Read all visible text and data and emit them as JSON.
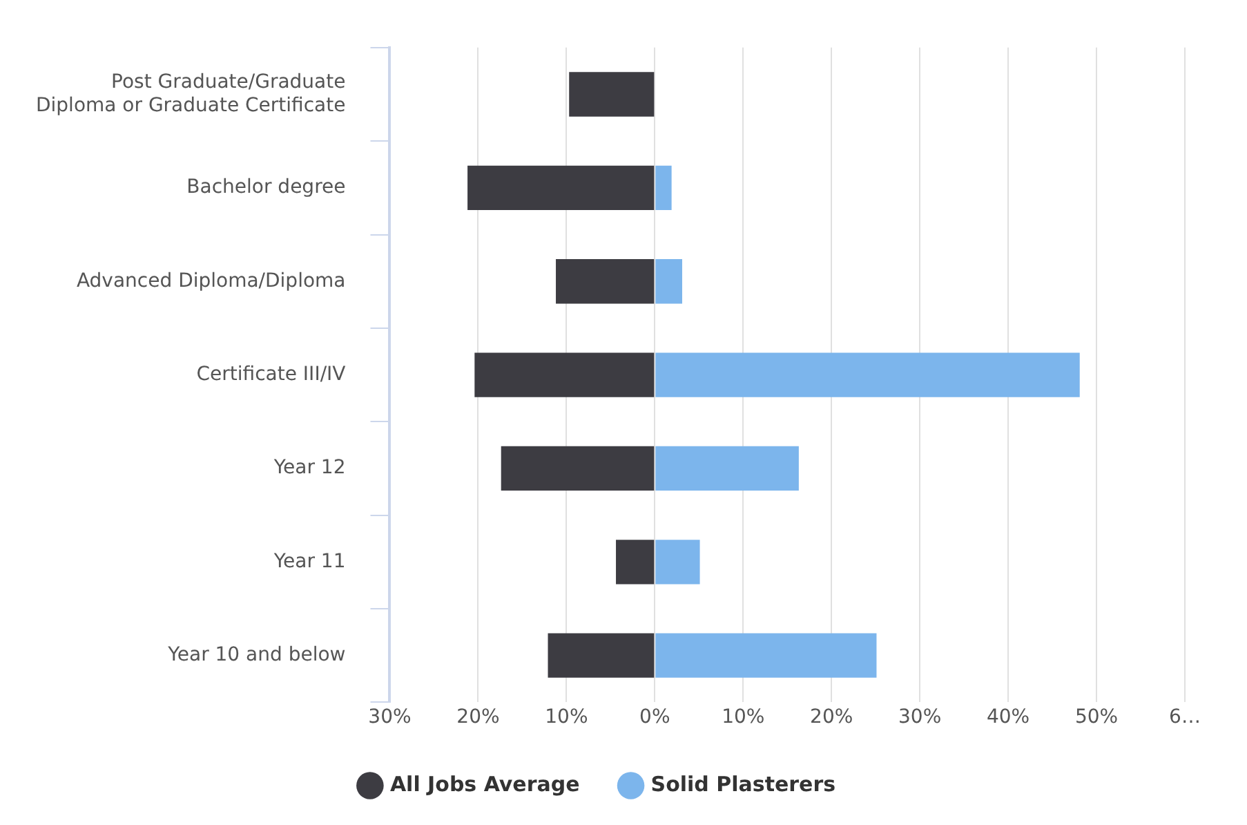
{
  "chart_data": {
    "type": "bar",
    "orientation": "horizontal",
    "stacked": true,
    "categories": [
      "Post Graduate/Graduate\nDiploma or Graduate Certificate",
      "Bachelor degree",
      "Advanced Diploma/Diploma",
      "Certificate III/IV",
      "Year 12",
      "Year 11",
      "Year 10 and below"
    ],
    "series": [
      {
        "name": "All Jobs Average",
        "color": "#3d3c42",
        "values": [
          -9.7,
          -21.2,
          -11.2,
          -20.4,
          -17.4,
          -4.4,
          -12.1
        ]
      },
      {
        "name": "Solid Plasterers",
        "color": "#7cb5ec",
        "values": [
          null,
          1.9,
          3.1,
          48.1,
          16.3,
          5.1,
          25.1
        ]
      }
    ],
    "xlim": [
      -30,
      60
    ],
    "xticks": [
      {
        "value": -30,
        "label": "30%"
      },
      {
        "value": -20,
        "label": "20%"
      },
      {
        "value": -10,
        "label": "10%"
      },
      {
        "value": 0,
        "label": "0%"
      },
      {
        "value": 10,
        "label": "10%"
      },
      {
        "value": 20,
        "label": "20%"
      },
      {
        "value": 30,
        "label": "30%"
      },
      {
        "value": 40,
        "label": "40%"
      },
      {
        "value": 50,
        "label": "50%"
      },
      {
        "value": 60,
        "label": "6…"
      }
    ],
    "grid": "x",
    "legend": "bottom",
    "marker": "circle"
  }
}
